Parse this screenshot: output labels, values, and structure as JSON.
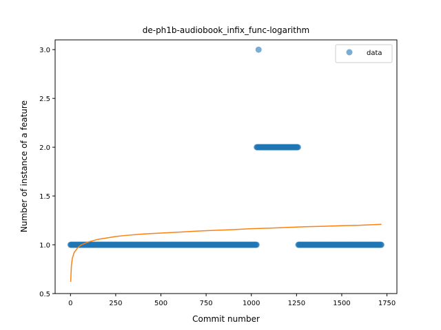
{
  "chart_data": {
    "type": "scatter",
    "title": "de-ph1b-audiobook_infix_func-logarithm",
    "xlabel": "Commit number",
    "ylabel": "Number of instance of a feature",
    "xlim": [
      -85,
      1805
    ],
    "ylim": [
      0.5,
      3.1
    ],
    "xticks": [
      0,
      250,
      500,
      750,
      1000,
      1250,
      1500,
      1750
    ],
    "yticks": [
      0.5,
      1.0,
      1.5,
      2.0,
      2.5,
      3.0
    ],
    "ytick_labels": [
      "0.5",
      "1.0",
      "1.5",
      "2.0",
      "2.5",
      "3.0"
    ],
    "legend": {
      "position": "top-right",
      "entries": [
        "data"
      ]
    },
    "colors": {
      "data": "#1f77b4",
      "fit": "#ff7f0e"
    },
    "series": [
      {
        "name": "data",
        "kind": "scatter",
        "segments": [
          {
            "x_start": 0,
            "x_end": 1030,
            "y": 1
          },
          {
            "x": 1040,
            "y": 3
          },
          {
            "x_start": 1030,
            "x_end": 1260,
            "y": 2
          },
          {
            "x_start": 1260,
            "x_end": 1720,
            "y": 1
          }
        ]
      },
      {
        "kind": "line",
        "x": [
          1,
          5,
          10,
          20,
          40,
          60,
          100,
          150,
          200,
          250,
          300,
          400,
          500,
          600,
          700,
          800,
          900,
          1000,
          1100,
          1200,
          1300,
          1400,
          1500,
          1600,
          1720
        ],
        "y": [
          0.62,
          0.79,
          0.86,
          0.92,
          0.97,
          1.0,
          1.03,
          1.055,
          1.07,
          1.085,
          1.095,
          1.11,
          1.12,
          1.13,
          1.14,
          1.148,
          1.155,
          1.165,
          1.17,
          1.178,
          1.185,
          1.19,
          1.196,
          1.2,
          1.21
        ]
      }
    ]
  }
}
